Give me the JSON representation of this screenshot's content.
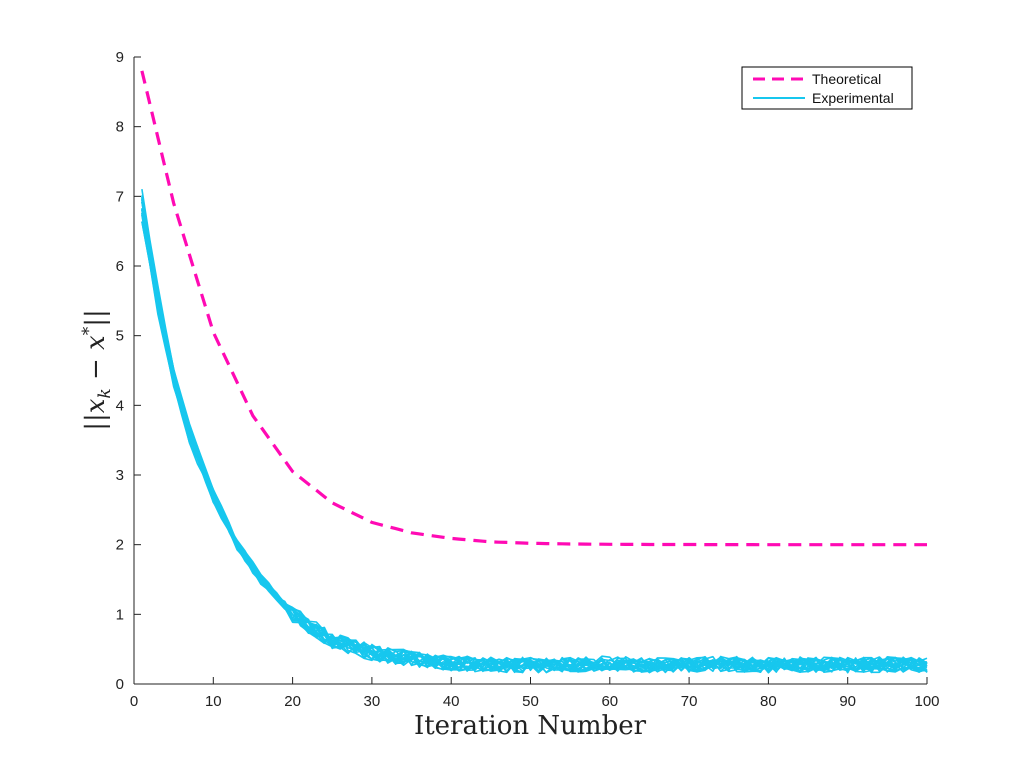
{
  "chart_data": {
    "type": "line",
    "title": "",
    "xlabel": "Iteration Number",
    "ylabel": "||x_k − x*||",
    "xlim": [
      0,
      100
    ],
    "ylim": [
      0,
      9
    ],
    "xticks": [
      0,
      10,
      20,
      30,
      40,
      50,
      60,
      70,
      80,
      90,
      100
    ],
    "yticks": [
      0,
      1,
      2,
      3,
      4,
      5,
      6,
      7,
      8,
      9
    ],
    "grid": false,
    "legend_position": "top-right",
    "legend": [
      {
        "label": "Theoretical",
        "color": "#ff0ab4",
        "style": "dashed"
      },
      {
        "label": "Experimental",
        "color": "#17c7ee",
        "style": "solid"
      }
    ],
    "series": [
      {
        "name": "Theoretical",
        "color": "#ff0ab4",
        "style": "dashed",
        "x": [
          1,
          5,
          10,
          15,
          20,
          25,
          30,
          35,
          40,
          45,
          50,
          55,
          60,
          65,
          70,
          75,
          80,
          85,
          90,
          95,
          100
        ],
        "y": [
          8.8,
          6.9,
          5.05,
          3.85,
          3.05,
          2.6,
          2.32,
          2.17,
          2.09,
          2.04,
          2.02,
          2.01,
          2.005,
          2.003,
          2.002,
          2.001,
          2.0,
          2.0,
          2.0,
          2.0,
          2.0
        ]
      },
      {
        "name": "Experimental",
        "color": "#17c7ee",
        "style": "solid",
        "x": [
          1,
          3,
          5,
          7,
          10,
          13,
          16,
          20,
          25,
          30,
          35,
          40,
          45,
          50,
          55,
          60,
          65,
          70,
          75,
          80,
          85,
          90,
          95,
          100
        ],
        "y": [
          6.85,
          5.5,
          4.4,
          3.6,
          2.7,
          2.0,
          1.5,
          1.0,
          0.62,
          0.45,
          0.36,
          0.3,
          0.28,
          0.27,
          0.28,
          0.3,
          0.27,
          0.28,
          0.29,
          0.27,
          0.28,
          0.27,
          0.28,
          0.27
        ],
        "trials": 20,
        "noise_band": [
          0.1,
          0.5
        ]
      }
    ]
  }
}
